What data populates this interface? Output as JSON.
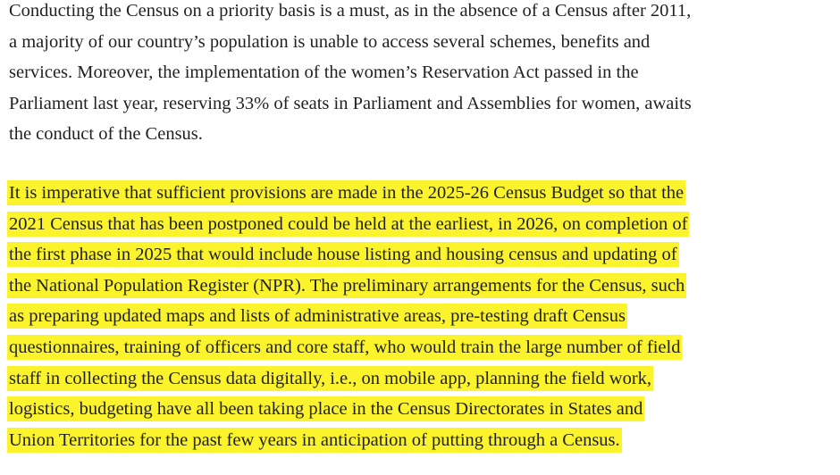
{
  "article": {
    "paragraphs": [
      {
        "highlighted": false,
        "lines": [
          "Conducting the Census on a priority basis is a must, as in the absence of a Census after 2011,",
          "a majority of our country’s population is unable to access several schemes, benefits and",
          "services. Moreover, the implementation of the women’s Reservation Act passed in the",
          "Parliament last year, reserving 33% of seats in Parliament and Assemblies for women, awaits",
          "the conduct of the Census."
        ]
      },
      {
        "highlighted": true,
        "lines": [
          "It is imperative that sufficient provisions are made in the 2025-26 Census Budget so that the",
          "2021 Census that has been postponed could be held at the earliest, in 2026, on completion of",
          "the first phase in 2025 that would include house listing and housing census and updating of",
          "the National Population Register (NPR). The preliminary arrangements for the Census, such",
          "as preparing updated maps and lists of administrative areas, pre-testing draft Census",
          "questionnaires, training of officers and core staff, who would train the large number of field",
          "staff in collecting the Census data digitally, i.e., on mobile app, planning the field work,",
          "logistics, budgeting have all been taking place in the Census Directorates in States and",
          "Union Territories for the past few years in anticipation of putting through a Census."
        ]
      }
    ]
  }
}
